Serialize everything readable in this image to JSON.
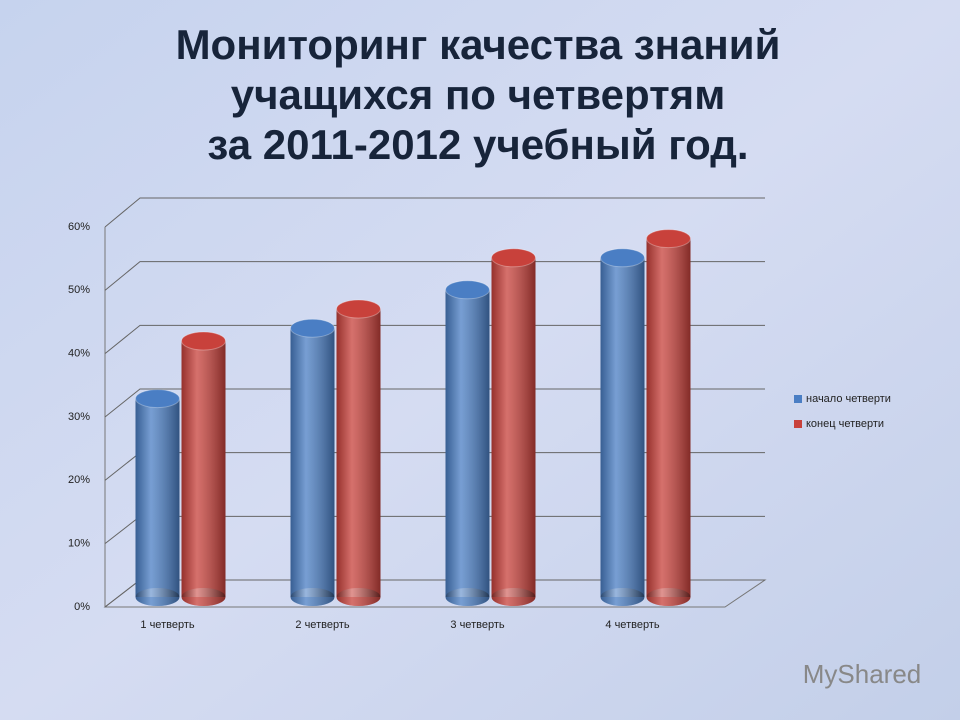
{
  "chart_data": {
    "type": "bar3d",
    "title": [
      "Мониторинг качества знаний",
      "учащихся по четвертям",
      "за 2011-2012 учебный год."
    ],
    "categories": [
      "1 четверть",
      "2 четверть",
      "3 четверть",
      "4 четверть"
    ],
    "series": [
      {
        "name": "начало четверти",
        "color": "#4a7ec4",
        "values": [
          31,
          42,
          48,
          53
        ]
      },
      {
        "name": "конец четверти",
        "color": "#c8413b",
        "values": [
          40,
          45,
          53,
          56
        ]
      }
    ],
    "ylim": [
      0,
      60
    ],
    "yticks": [
      {
        "value": 0,
        "label": "0%"
      },
      {
        "value": 10,
        "label": "10%"
      },
      {
        "value": 20,
        "label": "20%"
      },
      {
        "value": 30,
        "label": "30%"
      },
      {
        "value": 40,
        "label": "40%"
      },
      {
        "value": 50,
        "label": "50%"
      },
      {
        "value": 60,
        "label": "60%"
      }
    ],
    "grid": true,
    "legend": "right",
    "watermark": "MyShared"
  }
}
